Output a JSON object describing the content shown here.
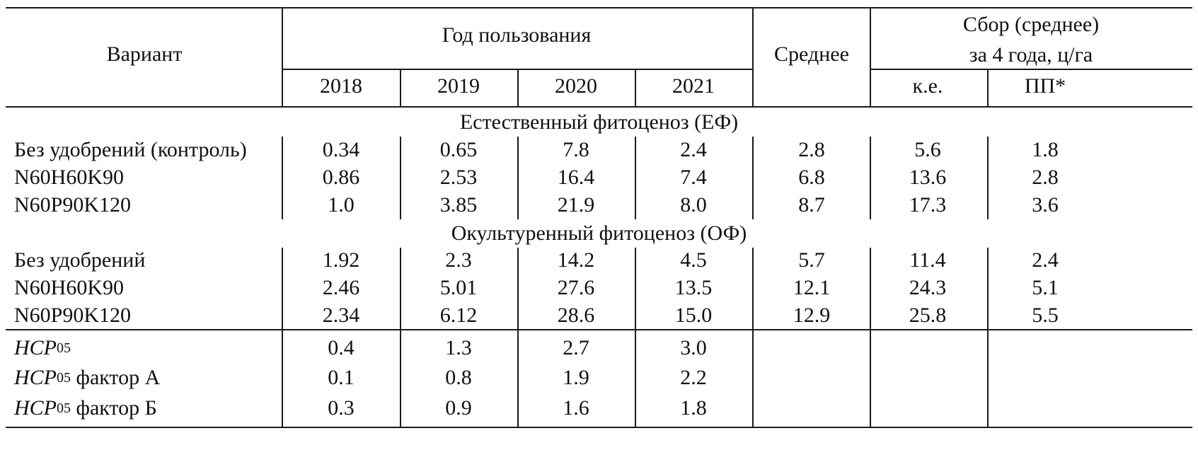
{
  "header": {
    "variant": "Вариант",
    "year_group": "Год пользования",
    "years": [
      "2018",
      "2019",
      "2020",
      "2021"
    ],
    "mean": "Среднее",
    "yield_line1": "Сбор (среднее)",
    "yield_line2": "за 4 года, ц/га",
    "ke": "к.е.",
    "pp": "ПП*"
  },
  "sections": [
    {
      "title": "Естественный фитоценоз (ЕФ)",
      "rows": [
        {
          "variant": "Без удобрений (контроль)",
          "values": [
            "0.34",
            "0.65",
            "7.8",
            "2.4",
            "2.8",
            "5.6",
            "1.8"
          ]
        },
        {
          "variant": "N60H60K90",
          "values": [
            "0.86",
            "2.53",
            "16.4",
            "7.4",
            "6.8",
            "13.6",
            "2.8"
          ]
        },
        {
          "variant": "N60P90K120",
          "values": [
            "1.0",
            "3.85",
            "21.9",
            "8.0",
            "8.7",
            "17.3",
            "3.6"
          ]
        }
      ]
    },
    {
      "title": "Окультуренный фитоценоз (ОФ)",
      "rows": [
        {
          "variant": "Без удобрений",
          "values": [
            "1.92",
            "2.3",
            "14.2",
            "4.5",
            "5.7",
            "11.4",
            "2.4"
          ]
        },
        {
          "variant": "N60H60K90",
          "values": [
            "2.46",
            "5.01",
            "27.6",
            "13.5",
            "12.1",
            "24.3",
            "5.1"
          ]
        },
        {
          "variant": "N60P90K120",
          "values": [
            "2.34",
            "6.12",
            "28.6",
            "15.0",
            "12.9",
            "25.8",
            "5.5"
          ]
        }
      ]
    }
  ],
  "lsd": {
    "abbr": "HCP",
    "sub": "05",
    "rows": [
      {
        "suffix": "",
        "values": [
          "0.4",
          "1.3",
          "2.7",
          "3.0"
        ]
      },
      {
        "suffix": " фактор А",
        "values": [
          "0.1",
          "0.8",
          "1.9",
          "2.2"
        ]
      },
      {
        "suffix": " фактор Б",
        "values": [
          "0.3",
          "0.9",
          "1.6",
          "1.8"
        ]
      }
    ]
  }
}
